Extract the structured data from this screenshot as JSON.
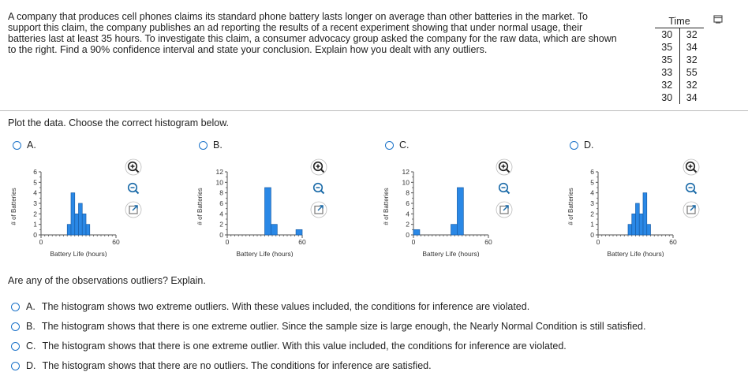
{
  "problem": {
    "text": "A company that produces cell phones claims its standard phone battery lasts longer on average than other batteries in the market. To support this claim, the company publishes an ad reporting the results of a recent experiment showing that under normal usage, their batteries last at least 35 hours. To investigate this claim, a consumer advocacy group asked the company for the raw data, which are shown to the right. Find a 90% confidence interval and state your conclusion. Explain how you dealt with any outliers."
  },
  "data_table": {
    "title": "Time",
    "left_col": [
      "30",
      "35",
      "35",
      "33",
      "32",
      "30"
    ],
    "right_col": [
      "32",
      "34",
      "32",
      "55",
      "32",
      "34"
    ]
  },
  "corner_icon": "window-restore-icon",
  "plot_prompt": "Plot the data. Choose the correct histogram below.",
  "hist_choices": [
    {
      "label": "A.",
      "y_tick_labels": [
        "6",
        "5",
        "4",
        "3",
        "2",
        "1",
        "0"
      ],
      "x_tick_labels": [
        "0",
        "60"
      ],
      "xlabel": "Battery Life (hours)",
      "ylabel": "# of Batteries"
    },
    {
      "label": "B.",
      "y_tick_labels": [
        "12",
        "10",
        "8",
        "6",
        "4",
        "2",
        "0"
      ],
      "x_tick_labels": [
        "0",
        "60"
      ],
      "xlabel": "Battery Life (hours)",
      "ylabel": "# of Batteries"
    },
    {
      "label": "C.",
      "y_tick_labels": [
        "12",
        "10",
        "8",
        "6",
        "4",
        "2",
        "0"
      ],
      "x_tick_labels": [
        "0",
        "60"
      ],
      "xlabel": "Battery Life (hours)",
      "ylabel": "# of Batteries"
    },
    {
      "label": "D.",
      "y_tick_labels": [
        "6",
        "5",
        "4",
        "3",
        "2",
        "1",
        "0"
      ],
      "x_tick_labels": [
        "0",
        "60"
      ],
      "xlabel": "Battery Life (hours)",
      "ylabel": "# of Batteries"
    }
  ],
  "chart_data": [
    {
      "type": "bar",
      "ylabel": "# of Batteries",
      "xlabel": "Battery Life (hours)",
      "xlim": [
        0,
        60
      ],
      "ylim": [
        0,
        6
      ],
      "bins": [
        {
          "start": 21,
          "end": 24,
          "value": 1
        },
        {
          "start": 24,
          "end": 27,
          "value": 4
        },
        {
          "start": 27,
          "end": 30,
          "value": 2
        },
        {
          "start": 30,
          "end": 33,
          "value": 3
        },
        {
          "start": 33,
          "end": 36,
          "value": 2
        },
        {
          "start": 36,
          "end": 39,
          "value": 1
        }
      ]
    },
    {
      "type": "bar",
      "ylabel": "# of Batteries",
      "xlabel": "Battery Life (hours)",
      "xlim": [
        0,
        60
      ],
      "ylim": [
        0,
        12
      ],
      "bins": [
        {
          "start": 30,
          "end": 35,
          "value": 9
        },
        {
          "start": 35,
          "end": 40,
          "value": 2
        },
        {
          "start": 55,
          "end": 60,
          "value": 1
        }
      ]
    },
    {
      "type": "bar",
      "ylabel": "# of Batteries",
      "xlabel": "Battery Life (hours)",
      "xlim": [
        0,
        60
      ],
      "ylim": [
        0,
        12
      ],
      "bins": [
        {
          "start": 0,
          "end": 5,
          "value": 1
        },
        {
          "start": 30,
          "end": 35,
          "value": 2
        },
        {
          "start": 35,
          "end": 40,
          "value": 9
        }
      ]
    },
    {
      "type": "bar",
      "ylabel": "# of Batteries",
      "xlabel": "Battery Life (hours)",
      "xlim": [
        0,
        60
      ],
      "ylim": [
        0,
        6
      ],
      "bins": [
        {
          "start": 24,
          "end": 27,
          "value": 1
        },
        {
          "start": 27,
          "end": 30,
          "value": 2
        },
        {
          "start": 30,
          "end": 33,
          "value": 3
        },
        {
          "start": 33,
          "end": 36,
          "value": 2
        },
        {
          "start": 36,
          "end": 39,
          "value": 4
        },
        {
          "start": 39,
          "end": 42,
          "value": 1
        }
      ]
    }
  ],
  "colors": {
    "bar_fill": "#2a88e6",
    "bar_stroke": "#1a5fa8",
    "radio": "#1c73c9",
    "zoom_icon": "#1a6aa8"
  },
  "hist_icons": [
    "zoom-in-icon",
    "zoom-out-icon",
    "expand-icon"
  ],
  "outlier_question": "Are any of the observations outliers? Explain.",
  "answers": [
    {
      "letter": "A.",
      "text": "The histogram shows two extreme outliers. With these values included, the conditions for inference are violated."
    },
    {
      "letter": "B.",
      "text": "The histogram shows that there is one extreme outlier. Since the sample size is large enough, the Nearly Normal Condition is still satisfied."
    },
    {
      "letter": "C.",
      "text": "The histogram shows that there is one extreme outlier. With this value included, the conditions for inference are violated."
    },
    {
      "letter": "D.",
      "text": "The histogram shows that there are no outliers. The conditions for inference are satisfied."
    }
  ]
}
